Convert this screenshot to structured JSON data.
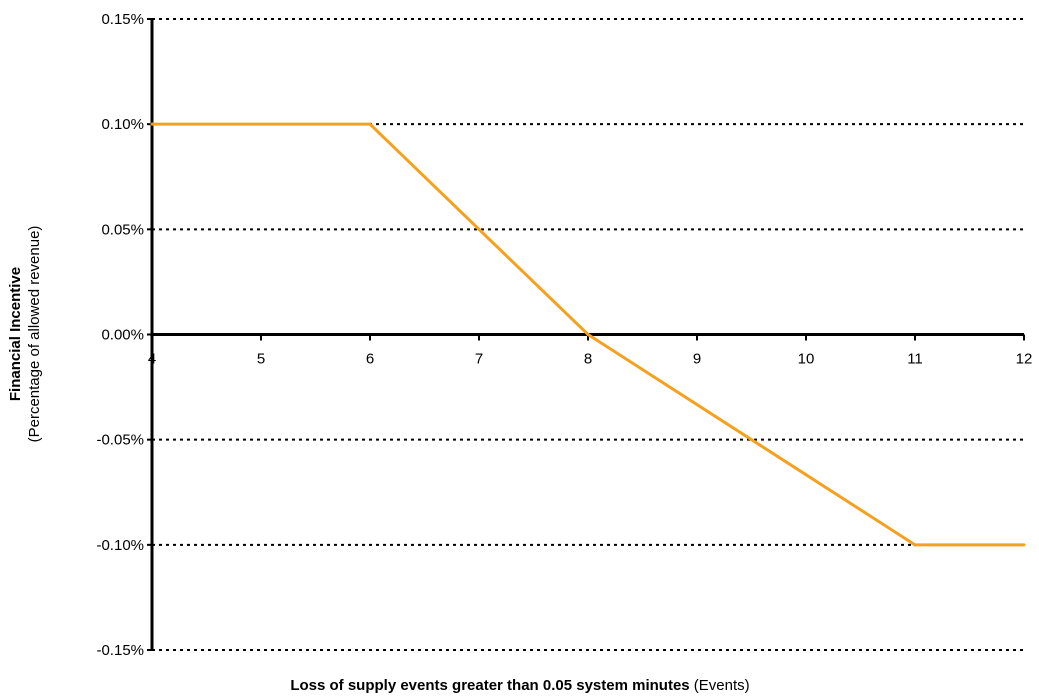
{
  "chart_data": {
    "type": "line",
    "x": [
      4,
      6,
      8,
      11,
      12
    ],
    "series": [
      {
        "values": [
          0.1,
          0.1,
          0.0,
          -0.1,
          -0.1
        ],
        "color": "#F5A11E"
      }
    ],
    "xlim": [
      4,
      12
    ],
    "ylim": [
      -0.15,
      0.15
    ],
    "xticks": [
      "4",
      "5",
      "6",
      "7",
      "8",
      "9",
      "10",
      "11",
      "12"
    ],
    "yticks": [
      "0.15%",
      "0.10%",
      "0.05%",
      "0.00%",
      "-0.05%",
      "-0.10%",
      "-0.15%"
    ],
    "xlabel": {
      "bold": "Loss of supply events greater than 0.05 system minutes",
      "normal": " (Events)"
    },
    "ylabel": {
      "bold": "Financial Incentive",
      "normal": "(Percentage of allowed revenue)"
    },
    "grid": "horizontal-dotted",
    "legend": "none"
  }
}
